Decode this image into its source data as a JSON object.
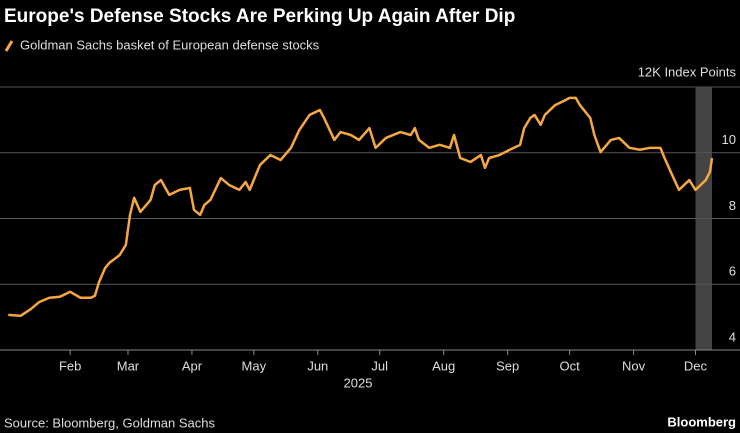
{
  "chart_data": {
    "type": "line",
    "title": "Europe's Defense Stocks Are Perking Up Again After Dip",
    "source": "Source: Bloomberg, Goldman Sachs",
    "brand": "Bloomberg",
    "xlabel": "2025",
    "xlim": [
      -3,
      342
    ],
    "xticks": [
      {
        "value": 31,
        "label": "Feb"
      },
      {
        "value": 59,
        "label": "Mar"
      },
      {
        "value": 90,
        "label": "Apr"
      },
      {
        "value": 120,
        "label": "May"
      },
      {
        "value": 151,
        "label": "Jun"
      },
      {
        "value": 181,
        "label": "Jul"
      },
      {
        "value": 212,
        "label": "Aug"
      },
      {
        "value": 243,
        "label": "Sep"
      },
      {
        "value": 273,
        "label": "Oct"
      },
      {
        "value": 304,
        "label": "Nov"
      },
      {
        "value": 334,
        "label": "Dec"
      }
    ],
    "ylim": [
      4,
      12
    ],
    "yticks": [
      4,
      6,
      8,
      10,
      {
        "value": 12,
        "label": "12K Index Points"
      }
    ],
    "grid": true,
    "highlight_x": [
      334,
      342
    ],
    "series": [
      {
        "name": "Goldman Sachs basket of European defense stocks",
        "color": "#f5a742",
        "x": [
          1,
          7,
          12,
          16,
          21,
          26,
          31,
          36,
          41,
          43,
          45,
          48,
          50,
          55,
          58,
          60,
          62,
          65,
          70,
          72,
          75,
          79,
          84,
          89,
          91,
          94,
          96,
          99,
          104,
          108,
          113,
          116,
          118,
          121,
          123,
          128,
          133,
          138,
          142,
          147,
          152,
          154,
          159,
          162,
          167,
          171,
          176,
          179,
          184,
          191,
          196,
          198,
          200,
          205,
          210,
          215,
          217,
          220,
          225,
          230,
          232,
          234,
          239,
          244,
          249,
          251,
          254,
          256,
          259,
          261,
          266,
          271,
          273,
          276,
          278,
          283,
          285,
          288,
          293,
          297,
          302,
          307,
          312,
          317,
          319,
          322,
          326,
          331,
          334,
          339,
          341,
          342
        ],
        "values": [
          5.07,
          5.04,
          5.25,
          5.46,
          5.59,
          5.62,
          5.77,
          5.59,
          5.59,
          5.65,
          6.07,
          6.5,
          6.65,
          6.89,
          7.2,
          8.11,
          8.63,
          8.2,
          8.57,
          9.02,
          9.17,
          8.72,
          8.87,
          8.93,
          8.26,
          8.11,
          8.41,
          8.57,
          9.23,
          9.02,
          8.87,
          9.11,
          8.87,
          9.33,
          9.63,
          9.93,
          9.78,
          10.15,
          10.69,
          11.15,
          11.3,
          11.06,
          10.39,
          10.63,
          10.54,
          10.39,
          10.75,
          10.15,
          10.45,
          10.63,
          10.54,
          10.75,
          10.39,
          10.15,
          10.24,
          10.15,
          10.54,
          9.84,
          9.72,
          9.93,
          9.54,
          9.84,
          9.93,
          10.09,
          10.24,
          10.75,
          11.06,
          11.15,
          10.85,
          11.15,
          11.45,
          11.6,
          11.67,
          11.67,
          11.45,
          11.06,
          10.54,
          10.02,
          10.39,
          10.45,
          10.15,
          10.09,
          10.15,
          10.15,
          9.84,
          9.42,
          8.87,
          9.17,
          8.87,
          9.17,
          9.42,
          9.84
        ]
      }
    ]
  }
}
